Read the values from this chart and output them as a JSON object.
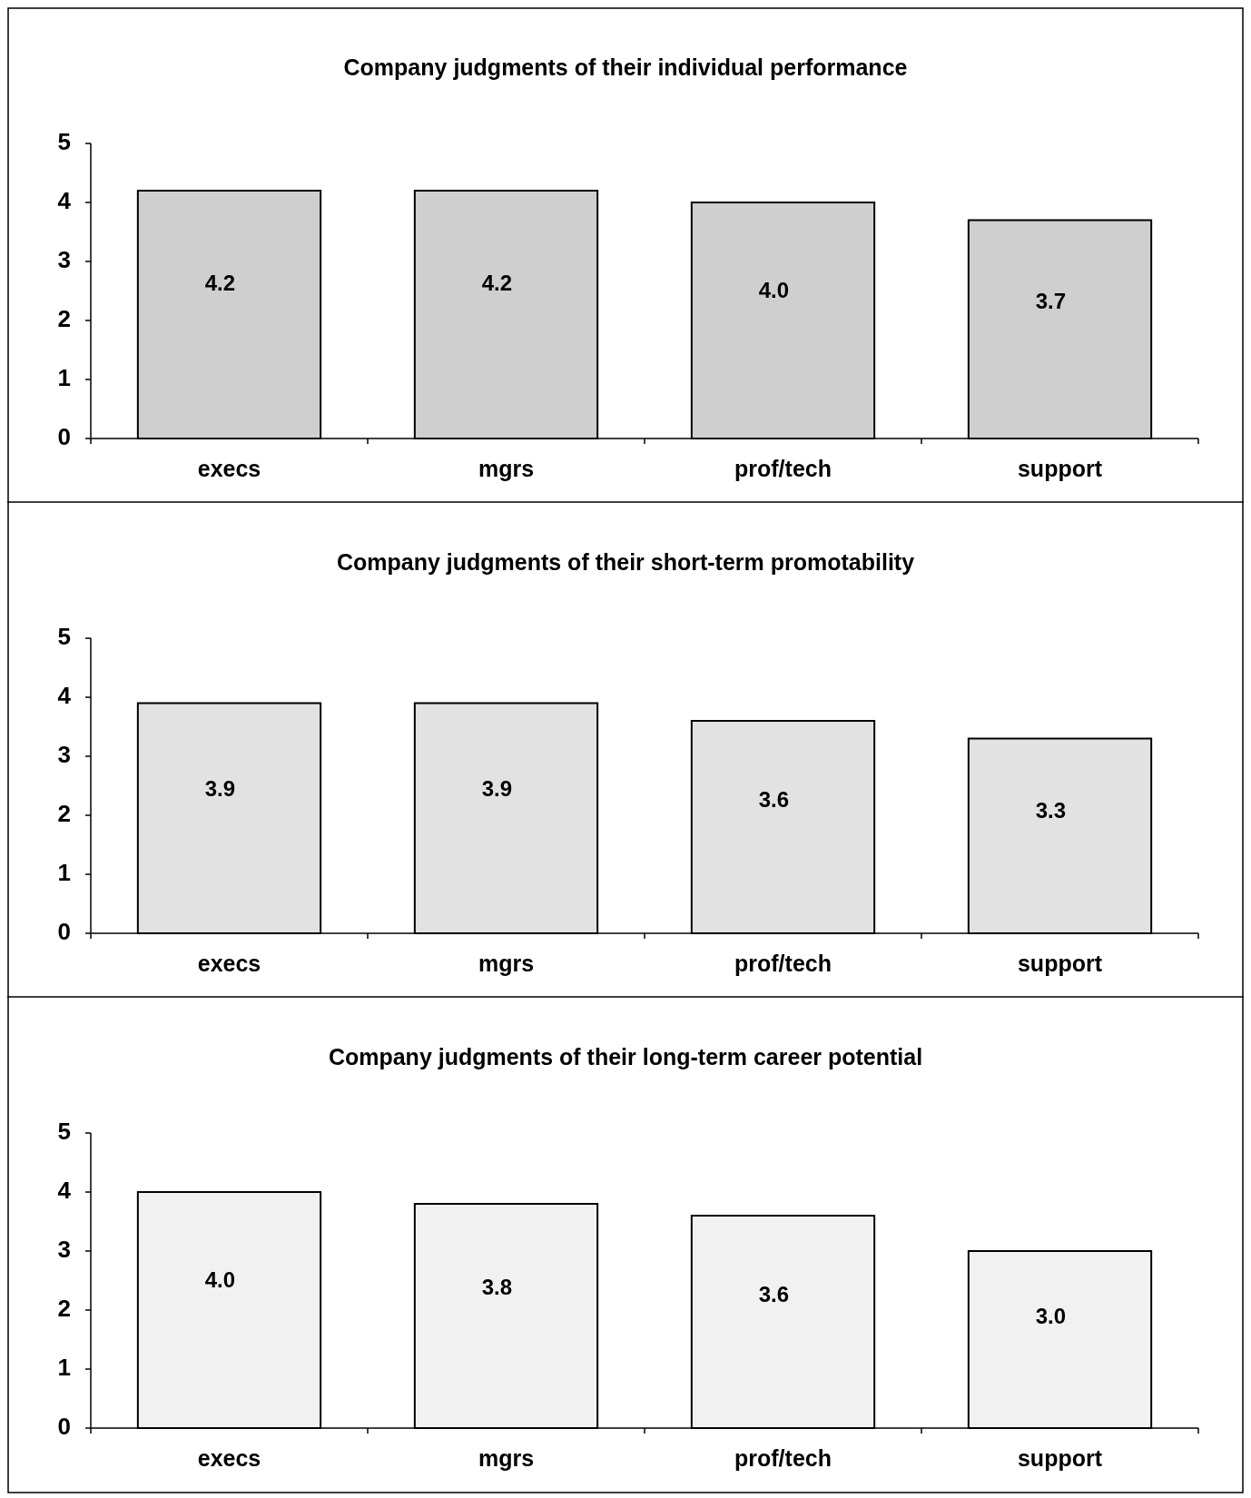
{
  "chart_data": [
    {
      "type": "bar",
      "title": "Company judgments of their individual performance",
      "categories": [
        "execs",
        "mgrs",
        "prof/tech",
        "support"
      ],
      "values": [
        4.2,
        4.2,
        4.0,
        3.7
      ],
      "value_labels": [
        "4.2",
        "4.2",
        "4.0",
        "3.7"
      ],
      "color": "#cfcfcf",
      "ylim": [
        0,
        5
      ],
      "yticks": [
        0,
        1,
        2,
        3,
        4,
        5
      ]
    },
    {
      "type": "bar",
      "title": "Company judgments of their short-term promotability",
      "categories": [
        "execs",
        "mgrs",
        "prof/tech",
        "support"
      ],
      "values": [
        3.9,
        3.9,
        3.6,
        3.3
      ],
      "value_labels": [
        "3.9",
        "3.9",
        "3.6",
        "3.3"
      ],
      "color": "#e2e2e2",
      "ylim": [
        0,
        5
      ],
      "yticks": [
        0,
        1,
        2,
        3,
        4,
        5
      ]
    },
    {
      "type": "bar",
      "title": "Company judgments of their long-term career potential",
      "categories": [
        "execs",
        "mgrs",
        "prof/tech",
        "support"
      ],
      "values": [
        4.0,
        3.8,
        3.6,
        3.0
      ],
      "value_labels": [
        "4.0",
        "3.8",
        "3.6",
        "3.0"
      ],
      "color": "#f1f1f1",
      "ylim": [
        0,
        5
      ],
      "yticks": [
        0,
        1,
        2,
        3,
        4,
        5
      ]
    }
  ]
}
